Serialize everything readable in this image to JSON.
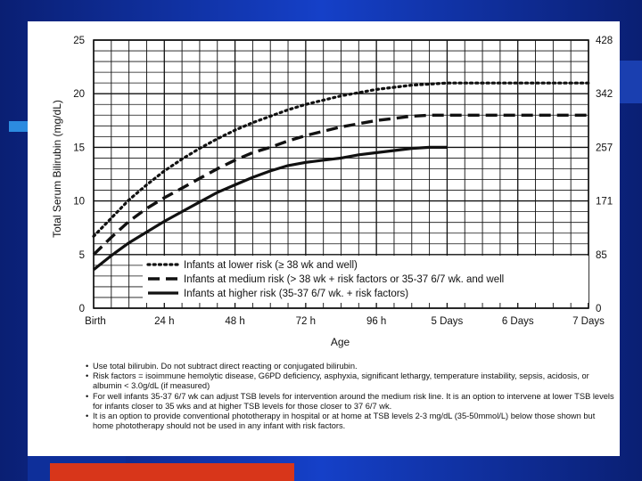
{
  "chart_data": {
    "type": "line",
    "ylabel": "Total Serum Bilirubin (mg/dL)",
    "xlabel": "Age",
    "ylim": [
      0,
      25
    ],
    "y_ticks": [
      0,
      5,
      10,
      15,
      20,
      25
    ],
    "y2_ticks": [
      "0",
      "85",
      "171",
      "257",
      "342",
      "428"
    ],
    "categories": [
      "Birth",
      "24 h",
      "48 h",
      "72 h",
      "96 h",
      "5 Days",
      "6 Days",
      "7 Days"
    ],
    "grid": true,
    "legend_position": "lower-right",
    "series": [
      {
        "name": "Infants at lower risk (≥ 38 wk and well)",
        "style": "dotted",
        "x": [
          0,
          0.25,
          0.5,
          0.75,
          1,
          1.25,
          1.5,
          1.75,
          2,
          2.25,
          2.5,
          2.75,
          3,
          3.25,
          3.5,
          3.75,
          4,
          4.25,
          4.5,
          4.75,
          5,
          5.5,
          6,
          6.5,
          7
        ],
        "y": [
          6.7,
          8.4,
          10.1,
          11.5,
          12.8,
          13.9,
          14.9,
          15.8,
          16.6,
          17.3,
          17.9,
          18.5,
          19.0,
          19.4,
          19.8,
          20.1,
          20.4,
          20.6,
          20.8,
          20.9,
          21.0,
          21.0,
          21.0,
          21.0,
          21.0
        ]
      },
      {
        "name": "Infants at medium risk (> 38 wk + risk factors or 35-37 6/7 wk. and well",
        "style": "dashed",
        "x": [
          0,
          0.25,
          0.5,
          0.75,
          1,
          1.25,
          1.5,
          1.75,
          2,
          2.25,
          2.5,
          2.75,
          3,
          3.25,
          3.5,
          3.75,
          4,
          4.25,
          4.5,
          4.75,
          5,
          5.5,
          6,
          6.5,
          7
        ],
        "y": [
          5.0,
          6.6,
          8.1,
          9.3,
          10.3,
          11.2,
          12.1,
          13.0,
          13.8,
          14.5,
          15.0,
          15.6,
          16.1,
          16.5,
          16.9,
          17.2,
          17.5,
          17.7,
          17.9,
          18.0,
          18.0,
          18.0,
          18.0,
          18.0,
          18.0
        ]
      },
      {
        "name": "Infants at higher risk (35-37 6/7 wk. + risk factors)",
        "style": "solid",
        "x": [
          0,
          0.25,
          0.5,
          0.75,
          1,
          1.25,
          1.5,
          1.75,
          2,
          2.25,
          2.5,
          2.75,
          3,
          3.25,
          3.5,
          3.75,
          4,
          4.25,
          4.5,
          4.75,
          5
        ],
        "y": [
          3.6,
          4.9,
          6.1,
          7.1,
          8.1,
          9.0,
          9.9,
          10.8,
          11.5,
          12.2,
          12.8,
          13.3,
          13.6,
          13.8,
          14.0,
          14.3,
          14.5,
          14.7,
          14.9,
          15.0,
          15.0
        ]
      }
    ]
  },
  "notes": [
    "Use total bilirubin.  Do not subtract direct reacting or conjugated bilirubin.",
    "Risk factors = isoimmune hemolytic disease, G6PD deficiency, asphyxia, significant lethargy, temperature instability, sepsis, acidosis, or albumin < 3.0g/dL (if measured)",
    "For well infants 35-37 6/7 wk can adjust TSB levels for intervention around the medium risk line.  It is an option to intervene at lower TSB levels for infants closer to 35 wks and at higher TSB levels for those closer to 37 6/7 wk.",
    "It is an option to provide conventional phototherapy in hospital or at home at TSB levels 2-3 mg/dL (35-50mmol/L) below those shown but home phototherapy should not be used in any infant with risk factors."
  ],
  "colors": {
    "background": "#0b2a8a",
    "panel": "#ffffff",
    "accent_red": "#d8361a",
    "accent_blue": "#2c8be0",
    "ink": "#111111"
  }
}
